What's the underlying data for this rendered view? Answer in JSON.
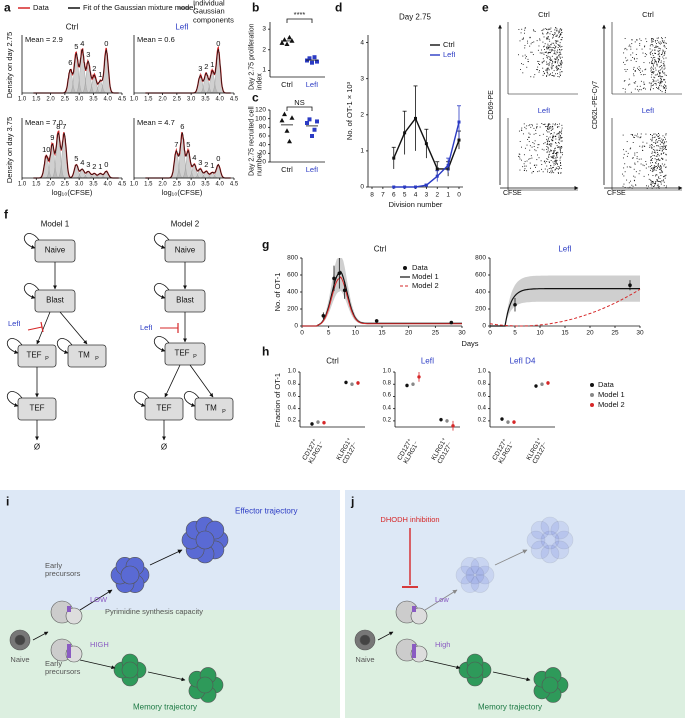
{
  "a": {
    "label": "a",
    "legend": [
      "Data",
      "Fit of the Gaussian mixture model",
      "Individual Gaussian components"
    ],
    "titles": [
      "Ctrl",
      "LefI"
    ],
    "y_labels": [
      "Density on day 2.75",
      "Density on day 3.75"
    ],
    "x_label": "log₁₀(CFSE)",
    "x_ticks": [
      "1.0",
      "1.5",
      "2.0",
      "2.5",
      "3.0",
      "3.5",
      "4.0",
      "4.5"
    ],
    "plots": [
      {
        "mean": "Mean = 2.9",
        "peaks": [
          "6",
          "5",
          "4",
          "3",
          "2",
          "1",
          "0"
        ]
      },
      {
        "mean": "Mean = 0.6",
        "peaks": [
          "3",
          "2",
          "1",
          "0"
        ]
      },
      {
        "mean": "Mean = 7.0",
        "peaks": [
          "10",
          "9",
          "8",
          "7",
          "5",
          "4",
          "3",
          "2",
          "1",
          "0"
        ]
      },
      {
        "mean": "Mean = 4.7",
        "peaks": [
          "7",
          "6",
          "5",
          "4",
          "3",
          "2",
          "1",
          "0"
        ]
      }
    ]
  },
  "b": {
    "label": "b",
    "y_label": "Day 2.75 proliferation index",
    "y_ticks": [
      "1",
      "2",
      "3"
    ],
    "significance": "****",
    "categories": [
      "Ctrl",
      "LefI"
    ]
  },
  "c": {
    "label": "c",
    "y_label": "Day 2.75 recruited cell number",
    "y_ticks": [
      "0",
      "20",
      "40",
      "60",
      "80",
      "100",
      "120"
    ],
    "significance": "NS",
    "categories": [
      "Ctrl",
      "LefI"
    ]
  },
  "d": {
    "label": "d",
    "title": "Day 2.75",
    "legend": [
      "Ctrl",
      "LefI"
    ],
    "y_label": "No. of OT-1 × 10³",
    "x_label": "Division number",
    "x_ticks": [
      "8",
      "7",
      "6",
      "5",
      "4",
      "3",
      "2",
      "1",
      "0"
    ],
    "y_ticks": [
      "0",
      "1",
      "2",
      "3",
      "4"
    ]
  },
  "e": {
    "label": "e",
    "titles": [
      "Ctrl",
      "Ctrl",
      "LefI",
      "LefI"
    ],
    "y_labels": [
      "CD69-PE",
      "CD62L-PE-Cy7"
    ],
    "x_label": "CFSE"
  },
  "f": {
    "label": "f",
    "sink": "Ø",
    "models": [
      {
        "title": "Model 1",
        "inhibitor": "LefI",
        "nodes": [
          {
            "label": "Naive"
          },
          {
            "label": "Blast"
          },
          {
            "label": "TEF",
            "sub": "P"
          },
          {
            "label": "TM",
            "sub": "P"
          },
          {
            "label": "TEF"
          }
        ]
      },
      {
        "title": "Model 2",
        "inhibitor": "LefI",
        "nodes": [
          {
            "label": "Naive"
          },
          {
            "label": "Blast"
          },
          {
            "label": "TEF",
            "sub": "P"
          },
          {
            "label": "TEF"
          },
          {
            "label": "TM",
            "sub": "P"
          }
        ]
      }
    ]
  },
  "g": {
    "label": "g",
    "titles": [
      "Ctrl",
      "LefI"
    ],
    "y_label": "No. of OT-1",
    "x_label": "Days",
    "legend": [
      "Data",
      "Model 1",
      "Model 2"
    ],
    "y_ticks": [
      "0",
      "200",
      "400",
      "600",
      "800"
    ],
    "x_ticks": [
      "0",
      "5",
      "10",
      "15",
      "20",
      "25",
      "30"
    ]
  },
  "h": {
    "label": "h",
    "titles": [
      "Ctrl",
      "LefI",
      "LefI D4"
    ],
    "y_label": "Fraction of OT-1",
    "y_ticks": [
      "0.2",
      "0.4",
      "0.6",
      "0.8",
      "1.0"
    ],
    "categories": [
      "CD127⁺ KLRG1⁻",
      "KLRG1⁺ CD127⁻"
    ],
    "legend": [
      "Data",
      "Model 1",
      "Model 2"
    ]
  },
  "i": {
    "label": "i",
    "texts": {
      "effector": "Effector trajectory",
      "early_top": "Early precursors",
      "low": "LOW",
      "capacity": "Pyrimidine synthesis capacity",
      "high": "HIGH",
      "early_bottom": "Early precursors",
      "naive": "Naive",
      "memory": "Memory trajectory"
    }
  },
  "j": {
    "label": "j",
    "texts": {
      "inhibition": "DHODH inhibition",
      "low": "Low",
      "high": "High",
      "naive": "Naive",
      "memory": "Memory trajectory"
    }
  }
}
